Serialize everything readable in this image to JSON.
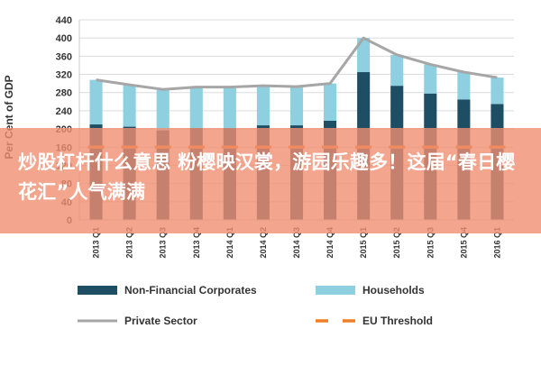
{
  "chart_data": {
    "type": "bar",
    "stacked": true,
    "title": "",
    "xlabel": "",
    "ylabel": "Per Cent of GDP",
    "ylim": [
      0,
      440
    ],
    "yticks": [
      0,
      40,
      80,
      120,
      160,
      200,
      240,
      280,
      320,
      360,
      400,
      440
    ],
    "grid": true,
    "categories": [
      "2013 Q1",
      "2013 Q2",
      "2013 Q3",
      "2013 Q4",
      "2014 Q1",
      "2014 Q2",
      "2014 Q3",
      "2014 Q4",
      "2015 Q1",
      "2015 Q2",
      "2015 Q3",
      "2015 Q4",
      "2016 Q1"
    ],
    "series": [
      {
        "name": "Non-Financial Corporates",
        "kind": "bar",
        "color": "#1e4e63",
        "values": [
          210,
          205,
          197,
          202,
          202,
          208,
          208,
          218,
          325,
          295,
          278,
          265,
          255
        ]
      },
      {
        "name": "Households",
        "kind": "bar",
        "color": "#8ecfe0",
        "values": [
          98,
          92,
          90,
          90,
          90,
          87,
          85,
          82,
          75,
          68,
          64,
          60,
          58
        ]
      },
      {
        "name": "Private Sector",
        "kind": "line",
        "color": "#a6a6a6",
        "values": [
          308,
          297,
          287,
          292,
          292,
          295,
          293,
          300,
          400,
          363,
          342,
          325,
          313
        ]
      },
      {
        "name": "EU Threshold",
        "kind": "dashed-line",
        "color": "#f07e26",
        "values": [
          160,
          160,
          160,
          160,
          160,
          160,
          160,
          160,
          160,
          160,
          160,
          160,
          160
        ]
      }
    ],
    "legend": {
      "placement": "bottom",
      "items": [
        {
          "label": "Non-Financial Corporates",
          "type": "box",
          "color": "#1e4e63"
        },
        {
          "label": "Households",
          "type": "box",
          "color": "#8ecfe0"
        },
        {
          "label": "Private Sector",
          "type": "line",
          "color": "#a6a6a6"
        },
        {
          "label": "EU Threshold",
          "type": "dash",
          "color": "#f07e26"
        }
      ]
    }
  },
  "overlay": {
    "text": "炒股杠杆什么意思 粉樱映汉裳，游园乐趣多！这届“春日樱花汇”人气满满",
    "color": "#f08e70"
  }
}
